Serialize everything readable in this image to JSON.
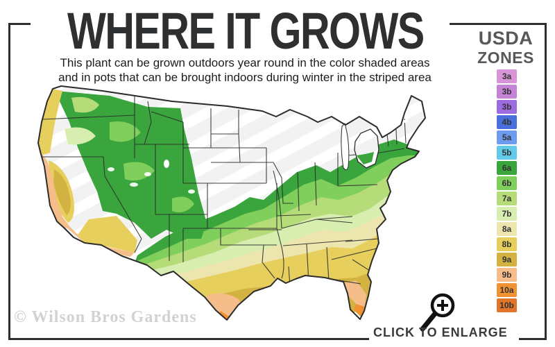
{
  "header": {
    "title": "WHERE IT GROWS",
    "subtitle_line1": "This plant can be grown outdoors year round in the color shaded areas",
    "subtitle_line2": "and in pots that can be brought indoors during winter in the striped area"
  },
  "legend": {
    "title_line1": "USDA",
    "title_line2": "ZONES",
    "zones": [
      {
        "label": "3a",
        "color": "#d795d7"
      },
      {
        "label": "3b",
        "color": "#c583d6"
      },
      {
        "label": "3b",
        "color": "#9d6ae0"
      },
      {
        "label": "4b",
        "color": "#4a6edc"
      },
      {
        "label": "5a",
        "color": "#6f9bee"
      },
      {
        "label": "5b",
        "color": "#62cce8"
      },
      {
        "label": "6a",
        "color": "#3aa53c"
      },
      {
        "label": "6b",
        "color": "#80cf5c"
      },
      {
        "label": "7a",
        "color": "#b5dc78"
      },
      {
        "label": "7b",
        "color": "#d8edb0"
      },
      {
        "label": "8a",
        "color": "#ece6ae"
      },
      {
        "label": "8b",
        "color": "#e7cf5e"
      },
      {
        "label": "9a",
        "color": "#d2b240"
      },
      {
        "label": "9b",
        "color": "#f5bd89"
      },
      {
        "label": "10a",
        "color": "#f09233"
      },
      {
        "label": "10b",
        "color": "#e1762b"
      }
    ]
  },
  "map": {
    "description": "Contiguous United States USDA hardiness zone map; color shaded areas = grows outdoors year round, white striped area = bring pots indoors in winter",
    "base_color": "#f2f2f2",
    "stripe_color": "#ffffff",
    "outline_color": "#2b2b2b",
    "frame_color": "#2e2e2e"
  },
  "footer": {
    "watermark": "© Wilson Bros Gardens",
    "enlarge_label": "CLICK TO ENLARGE"
  },
  "icons": {
    "magnifier": "magnifying-glass-plus-icon"
  }
}
